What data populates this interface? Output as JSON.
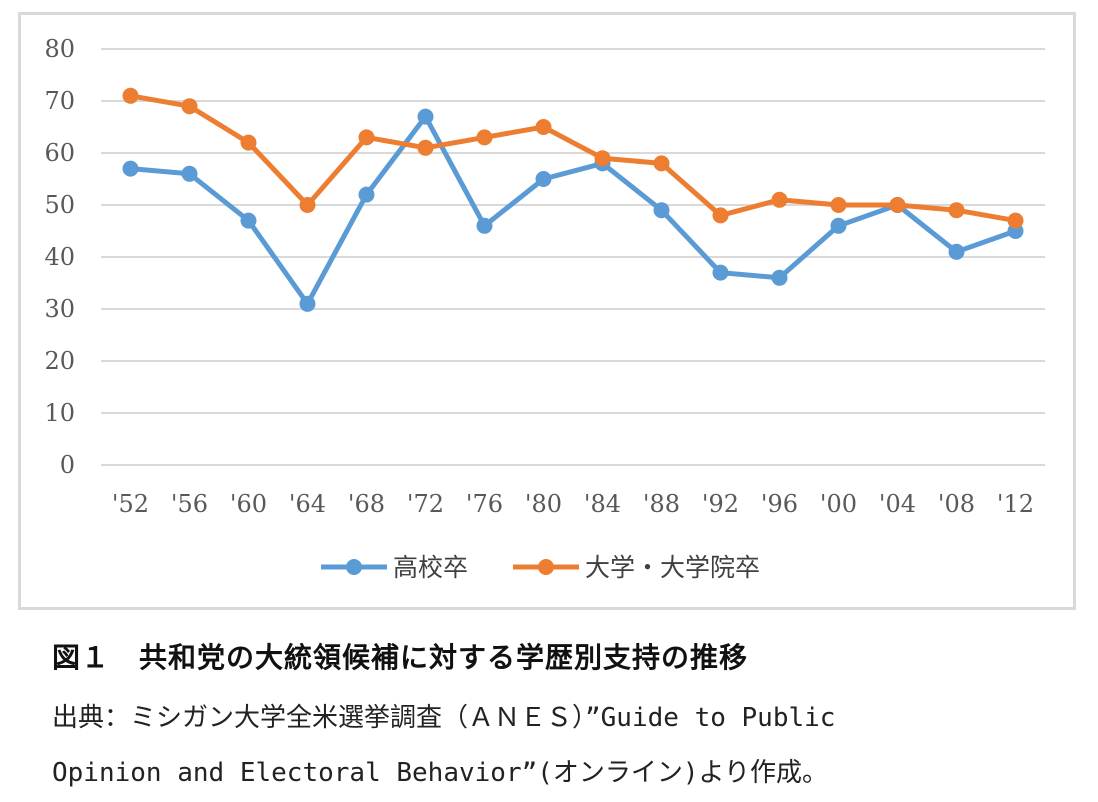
{
  "chart_data": {
    "type": "line",
    "categories": [
      "'52",
      "'56",
      "'60",
      "'64",
      "'68",
      "'72",
      "'76",
      "'80",
      "'84",
      "'88",
      "'92",
      "'96",
      "'00",
      "'04",
      "'08",
      "'12"
    ],
    "series": [
      {
        "name": "高校卒",
        "color": "#5b9bd5",
        "values": [
          57,
          56,
          47,
          31,
          52,
          67,
          46,
          55,
          58,
          49,
          37,
          36,
          46,
          50,
          41,
          45
        ]
      },
      {
        "name": "大学・大学院卒",
        "color": "#ed7d31",
        "values": [
          71,
          69,
          62,
          50,
          63,
          61,
          63,
          65,
          59,
          58,
          48,
          51,
          50,
          50,
          49,
          47
        ]
      }
    ],
    "yticks": [
      "0",
      "10",
      "20",
      "30",
      "40",
      "50",
      "60",
      "70",
      "80"
    ],
    "ylim": [
      0,
      80
    ],
    "grid": true,
    "legend_position": "bottom"
  },
  "caption": {
    "title": "図１　共和党の大統領候補に対する学歴別支持の推移",
    "source_line1": "出典：ミシガン大学全米選挙調査（ＡＮＥＳ）”Guide to Public",
    "source_line2": "Opinion and Electoral Behavior”(オンライン)より作成。"
  }
}
